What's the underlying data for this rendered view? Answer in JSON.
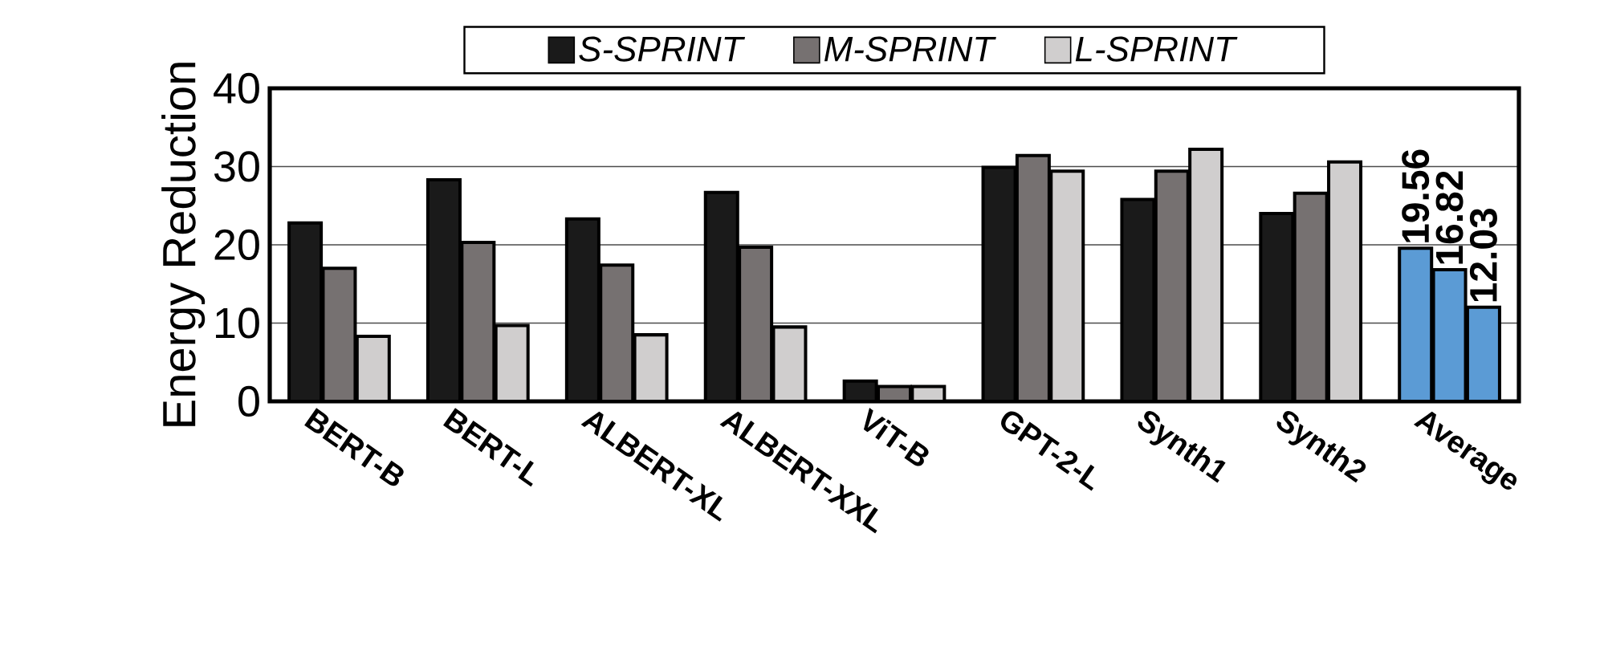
{
  "chart_data": {
    "type": "bar",
    "ylabel": "Energy Reduction",
    "categories": [
      "BERT-B",
      "BERT-L",
      "ALBERT-XL",
      "ALBERT-XXL",
      "ViT-B",
      "GPT-2-L",
      "Synth1",
      "Synth2",
      "Average"
    ],
    "ylim": [
      0,
      40
    ],
    "yticks": [
      0,
      10,
      20,
      30,
      40
    ],
    "grid": "y",
    "legend": "top",
    "series": [
      {
        "name": "*S-SPRINT*",
        "color": "#1a1a1a",
        "colors": [
          "#1a1a1a",
          "#1a1a1a",
          "#1a1a1a",
          "#1a1a1a",
          "#1a1a1a",
          "#1a1a1a",
          "#1a1a1a",
          "#1a1a1a",
          "#5b9bd5"
        ],
        "values": [
          22.8,
          28.3,
          23.3,
          26.7,
          2.6,
          29.9,
          25.8,
          24.0,
          19.56
        ],
        "value_labels": [
          null,
          null,
          null,
          null,
          null,
          null,
          null,
          null,
          "19.56"
        ]
      },
      {
        "name": "*M-SPRINT*",
        "color": "#767171",
        "colors": [
          "#767171",
          "#767171",
          "#767171",
          "#767171",
          "#767171",
          "#767171",
          "#767171",
          "#767171",
          "#5b9bd5"
        ],
        "values": [
          17.0,
          20.3,
          17.4,
          19.7,
          1.9,
          31.4,
          29.4,
          26.6,
          16.82
        ],
        "value_labels": [
          null,
          null,
          null,
          null,
          null,
          null,
          null,
          null,
          "16.82"
        ]
      },
      {
        "name": "*L-SPRINT*",
        "color": "#d0cece",
        "colors": [
          "#d0cece",
          "#d0cece",
          "#d0cece",
          "#d0cece",
          "#d0cece",
          "#d0cece",
          "#d0cece",
          "#d0cece",
          "#5b9bd5"
        ],
        "values": [
          8.3,
          9.7,
          8.5,
          9.5,
          1.9,
          29.4,
          32.2,
          30.6,
          12.03
        ],
        "value_labels": [
          null,
          null,
          null,
          null,
          null,
          null,
          null,
          null,
          "12.03"
        ]
      }
    ]
  }
}
